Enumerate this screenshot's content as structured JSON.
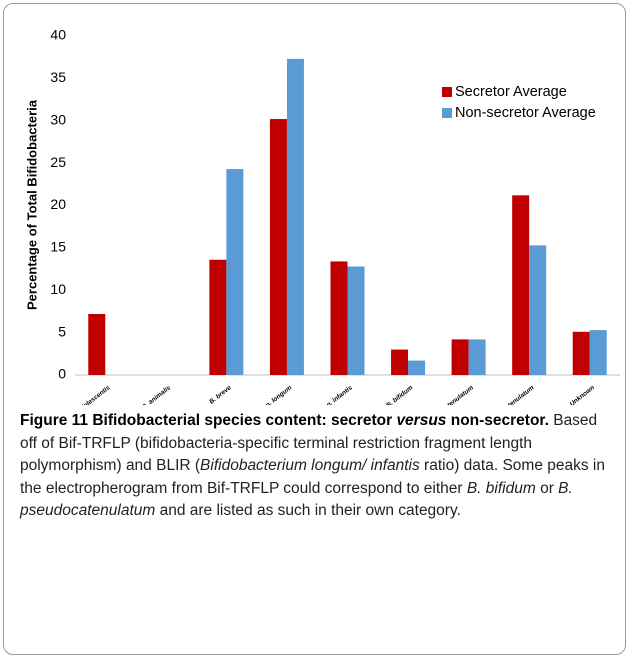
{
  "chart_data": {
    "type": "bar",
    "y_label": "Percentage of Total Bifidobacteria",
    "categories": [
      "B. adolescentis",
      "B. animalis",
      "B. breve",
      "B. longum subsp. longum",
      "B. longum subsp. infantis",
      "B. bifidum",
      "B. bifidum/pseudocatenulatum",
      "B.pseudocatenulatum",
      "Unknown"
    ],
    "series": [
      {
        "name": "Secretor Average",
        "color": "#c00000",
        "values": [
          7.2,
          0,
          13.6,
          30.2,
          13.4,
          3.0,
          4.2,
          21.2,
          5.1
        ]
      },
      {
        "name": "Non-secretor Average",
        "color": "#5b9bd5",
        "values": [
          0,
          0,
          24.3,
          37.3,
          12.8,
          1.7,
          4.2,
          15.3,
          5.3
        ]
      }
    ],
    "ylim": [
      0,
      40
    ],
    "yticks": [
      0,
      5,
      10,
      15,
      20,
      25,
      30,
      35,
      40
    ],
    "grid": false,
    "legend": "top-right"
  },
  "caption": [
    {
      "text": "Figure 11 Bifidobacterial species content: secretor ",
      "bold": true,
      "italic": false
    },
    {
      "text": "versus",
      "bold": true,
      "italic": true
    },
    {
      "text": " non-secretor.",
      "bold": true,
      "italic": false
    },
    {
      "text": " Based off of Bif-TRFLP (bifidobacteria-specific terminal restriction fragment length polymorphism) and BLIR (",
      "bold": false,
      "italic": false
    },
    {
      "text": "Bifidobacterium longum/ infantis",
      "bold": false,
      "italic": true
    },
    {
      "text": " ratio) data. Some peaks in the electropherogram from Bif-TRFLP could correspond to either ",
      "bold": false,
      "italic": false
    },
    {
      "text": "B. bifidum",
      "bold": false,
      "italic": true
    },
    {
      "text": " or ",
      "bold": false,
      "italic": false
    },
    {
      "text": "B. pseudocatenulatum",
      "bold": false,
      "italic": true
    },
    {
      "text": " and are listed as such in their own category.",
      "bold": false,
      "italic": false
    }
  ]
}
